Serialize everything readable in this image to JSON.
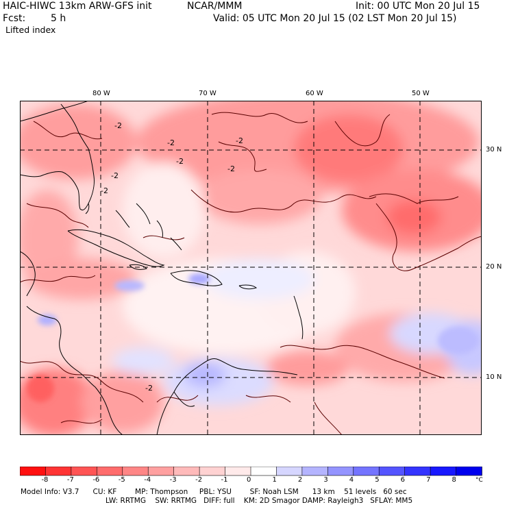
{
  "header": {
    "title_left": "HAIC-HIWC 13km ARW-GFS init",
    "org": "NCAR/MMM",
    "init": "Init: 00 UTC Mon 20 Jul 15",
    "fcst_label": "Fcst:",
    "fcst_value": "5 h",
    "valid": "Valid: 05 UTC Mon 20 Jul 15 (02 LST Mon 20 Jul 15)",
    "field": "Lifted index"
  },
  "map": {
    "lon_labels": [
      "80 W",
      "70 W",
      "60 W",
      "50 W"
    ],
    "lat_labels": [
      "30 N",
      "20 N",
      "10 N"
    ],
    "contour_labels": [
      "-2",
      "-2",
      "-2",
      "-2",
      "-2",
      "-2",
      "-2",
      "-2"
    ],
    "colors": {
      "frame": "#000000",
      "grid": "#000000",
      "coast": "#000000",
      "neg_light": "#ffdede",
      "neg_mid": "#ff9a9a",
      "pos_light": "#dcdcff"
    }
  },
  "colorbar": {
    "ticks": [
      "-8",
      "-7",
      "-6",
      "-5",
      "-4",
      "-3",
      "-2",
      "-1",
      "0",
      "1",
      "2",
      "3",
      "4",
      "5",
      "6",
      "7",
      "8"
    ],
    "unit": "°C",
    "colors": [
      "#ff1010",
      "#ff3434",
      "#ff5454",
      "#ff6c6c",
      "#ff8686",
      "#ffa0a0",
      "#ffbaba",
      "#ffd2d2",
      "#ffeaea",
      "#ffffff",
      "#d6d6ff",
      "#b4b4ff",
      "#9494ff",
      "#7474ff",
      "#5454ff",
      "#3434ff",
      "#1818ff",
      "#0000ee"
    ]
  },
  "model_info": {
    "line1": "Model Info: V3.7      CU: KF        MP: Thompson     PBL: YSU        SF: Noah LSM      13 km    51 levels   60 sec",
    "line2": "LW: RRTMG    SW: RRTMG   DIFF: full    KM: 2D Smagor DAMP: Rayleigh3   SFLAY: MM5"
  }
}
